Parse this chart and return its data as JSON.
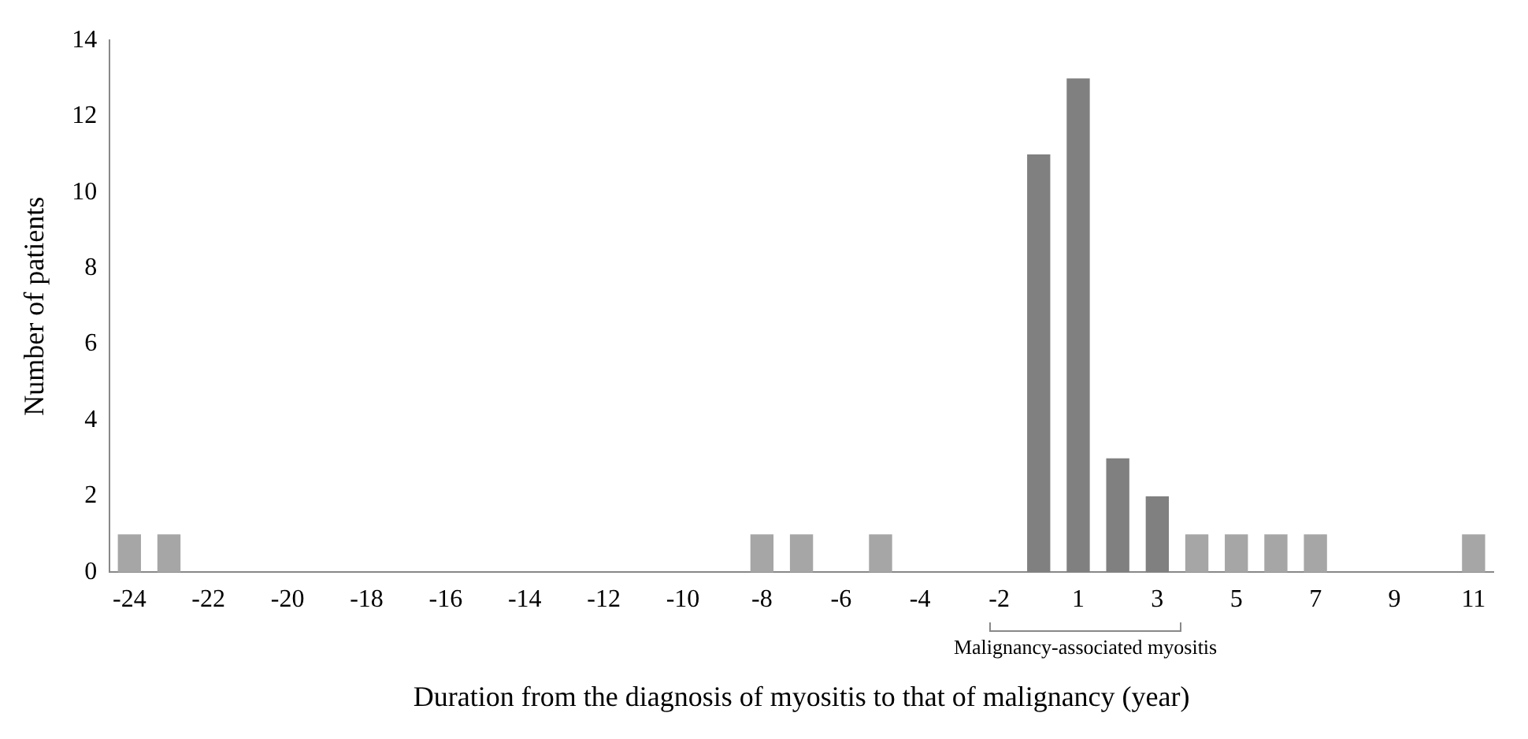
{
  "chart_data": {
    "type": "bar",
    "xlabel": "Duration from the diagnosis of myositis to that of malignancy (year)",
    "ylabel": "Number of patients",
    "categories": [
      "-24",
      null,
      "-22",
      null,
      "-20",
      null,
      "-18",
      null,
      "-16",
      null,
      "-14",
      null,
      "-12",
      null,
      "-10",
      null,
      "-8",
      null,
      "-6",
      null,
      "-4",
      null,
      "-2",
      null,
      "1",
      null,
      "3",
      null,
      "5",
      null,
      "7",
      null,
      "9",
      null,
      "11"
    ],
    "values": [
      1,
      1,
      0,
      0,
      0,
      0,
      0,
      0,
      0,
      0,
      0,
      0,
      0,
      0,
      0,
      0,
      1,
      1,
      0,
      1,
      0,
      0,
      0,
      11,
      13,
      3,
      2,
      1,
      1,
      1,
      1,
      0,
      0,
      0,
      1
    ],
    "colors": [
      "#a6a6a6",
      "#a6a6a6",
      "#a6a6a6",
      "#a6a6a6",
      "#a6a6a6",
      "#a6a6a6",
      "#a6a6a6",
      "#a6a6a6",
      "#a6a6a6",
      "#a6a6a6",
      "#a6a6a6",
      "#a6a6a6",
      "#a6a6a6",
      "#a6a6a6",
      "#a6a6a6",
      "#a6a6a6",
      "#a6a6a6",
      "#a6a6a6",
      "#a6a6a6",
      "#a6a6a6",
      "#a6a6a6",
      "#a6a6a6",
      "#a6a6a6",
      "#808080",
      "#808080",
      "#808080",
      "#808080",
      "#a6a6a6",
      "#a6a6a6",
      "#a6a6a6",
      "#a6a6a6",
      "#a6a6a6",
      "#a6a6a6",
      "#a6a6a6",
      "#a6a6a6"
    ],
    "ylim": [
      0,
      14
    ],
    "yticks": [
      0,
      2,
      4,
      6,
      8,
      10,
      12,
      14
    ],
    "grid": false,
    "annotations": [
      "Malignancy-associated myositis"
    ]
  }
}
